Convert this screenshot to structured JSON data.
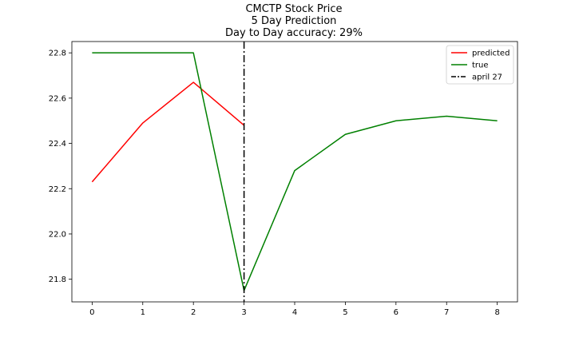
{
  "chart_data": {
    "type": "line",
    "title": "CMCTP Stock Price",
    "subtitle_lines": [
      "5 Day Prediction",
      "Day to Day accuracy: 29%"
    ],
    "xlabel": "",
    "ylabel": "",
    "xlim": [
      -0.4,
      8.4
    ],
    "ylim": [
      21.7,
      22.85
    ],
    "x_ticks": [
      0,
      1,
      2,
      3,
      4,
      5,
      6,
      7,
      8
    ],
    "y_ticks": [
      21.8,
      22.0,
      22.2,
      22.4,
      22.6,
      22.8
    ],
    "y_tick_labels": [
      "21.8",
      "22.0",
      "22.2",
      "22.4",
      "22.6",
      "22.8"
    ],
    "grid": false,
    "legend_position": "upper-right",
    "series": [
      {
        "name": "predicted",
        "color": "#ff0000",
        "x": [
          0,
          1,
          2,
          3
        ],
        "y": [
          22.23,
          22.49,
          22.67,
          22.48
        ]
      },
      {
        "name": "true",
        "color": "#008000",
        "x": [
          0,
          1,
          2,
          3,
          4,
          5,
          6,
          7,
          8
        ],
        "y": [
          22.8,
          22.8,
          22.8,
          21.75,
          22.28,
          22.44,
          22.5,
          22.52,
          22.5
        ]
      }
    ],
    "vline": {
      "name": "april 27",
      "x": 3,
      "color": "#000000",
      "style": "dash-dot"
    }
  }
}
